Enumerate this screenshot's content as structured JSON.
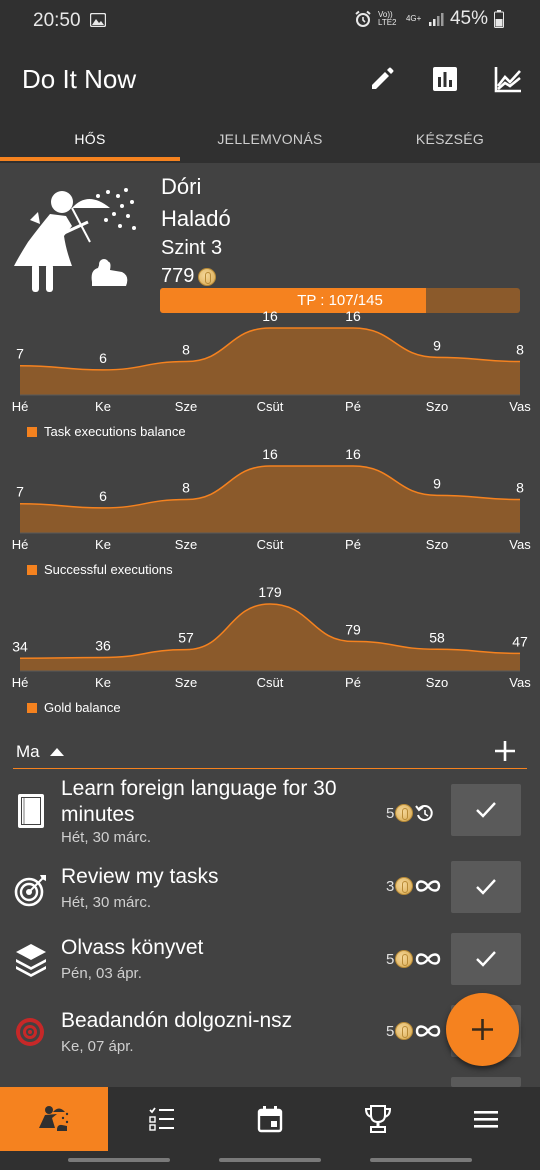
{
  "status_bar": {
    "time": "20:50",
    "network_top": "Vo)) LTE2",
    "network_4g": "4G+",
    "battery": "45%"
  },
  "app": {
    "title": "Do It Now"
  },
  "toolbar": {
    "icons": [
      "pencil-icon",
      "bar-chart-icon",
      "line-chart-icon"
    ]
  },
  "tabs": [
    {
      "label": "HŐS",
      "active": true
    },
    {
      "label": "JELLEMVONÁS",
      "active": false
    },
    {
      "label": "KÉSZSÉG",
      "active": false
    }
  ],
  "hero": {
    "name": "Dóri",
    "rank": "Haladó",
    "level": "Szint 3",
    "gold": "779",
    "tp_label": "TP : 107/145",
    "tp_current": 107,
    "tp_max": 145
  },
  "chart_data": [
    {
      "type": "area",
      "categories": [
        "Hé",
        "Ke",
        "Sze",
        "Csüt",
        "Pé",
        "Szo",
        "Vas"
      ],
      "series": [
        {
          "name": "Task executions balance",
          "values": [
            7,
            6,
            8,
            16,
            16,
            9,
            8
          ]
        }
      ],
      "legend": "bottom-left",
      "grid": false
    },
    {
      "type": "area",
      "categories": [
        "Hé",
        "Ke",
        "Sze",
        "Csüt",
        "Pé",
        "Szo",
        "Vas"
      ],
      "series": [
        {
          "name": "Successful executions",
          "values": [
            7,
            6,
            8,
            16,
            16,
            9,
            8
          ]
        }
      ],
      "legend": "bottom-left",
      "grid": false
    },
    {
      "type": "area",
      "categories": [
        "Hé",
        "Ke",
        "Sze",
        "Csüt",
        "Pé",
        "Szo",
        "Vas"
      ],
      "series": [
        {
          "name": "Gold balance",
          "values": [
            34,
            36,
            57,
            179,
            79,
            58,
            47
          ]
        }
      ],
      "legend": "bottom-left",
      "grid": false
    }
  ],
  "task_section": {
    "title": "Ma"
  },
  "tasks": [
    {
      "title": "Learn foreign language for 30 minutes",
      "date": "Hét, 30 márc.",
      "reward": "5",
      "repeat": "repeat-icon",
      "icon": "book-icon"
    },
    {
      "title": "Review my tasks",
      "date": "Hét, 30 márc.",
      "reward": "3",
      "repeat": "infinity-icon",
      "icon": "target-dart-icon"
    },
    {
      "title": "Olvass könyvet",
      "date": "Pén, 03 ápr.",
      "reward": "5",
      "repeat": "infinity-icon",
      "icon": "books-stack-icon"
    },
    {
      "title": "Beadandón dolgozni-nsz",
      "date": "Ke, 07 ápr.",
      "reward": "5",
      "repeat": "infinity-icon",
      "icon": "red-target-icon"
    }
  ],
  "bottom_nav": [
    "hero-icon",
    "task-list-icon",
    "calendar-icon",
    "trophy-icon",
    "menu-icon"
  ],
  "colors": {
    "accent": "#f5821f",
    "area_fill": "#8b5a2b",
    "background": "#424242",
    "bar": "#303030"
  }
}
